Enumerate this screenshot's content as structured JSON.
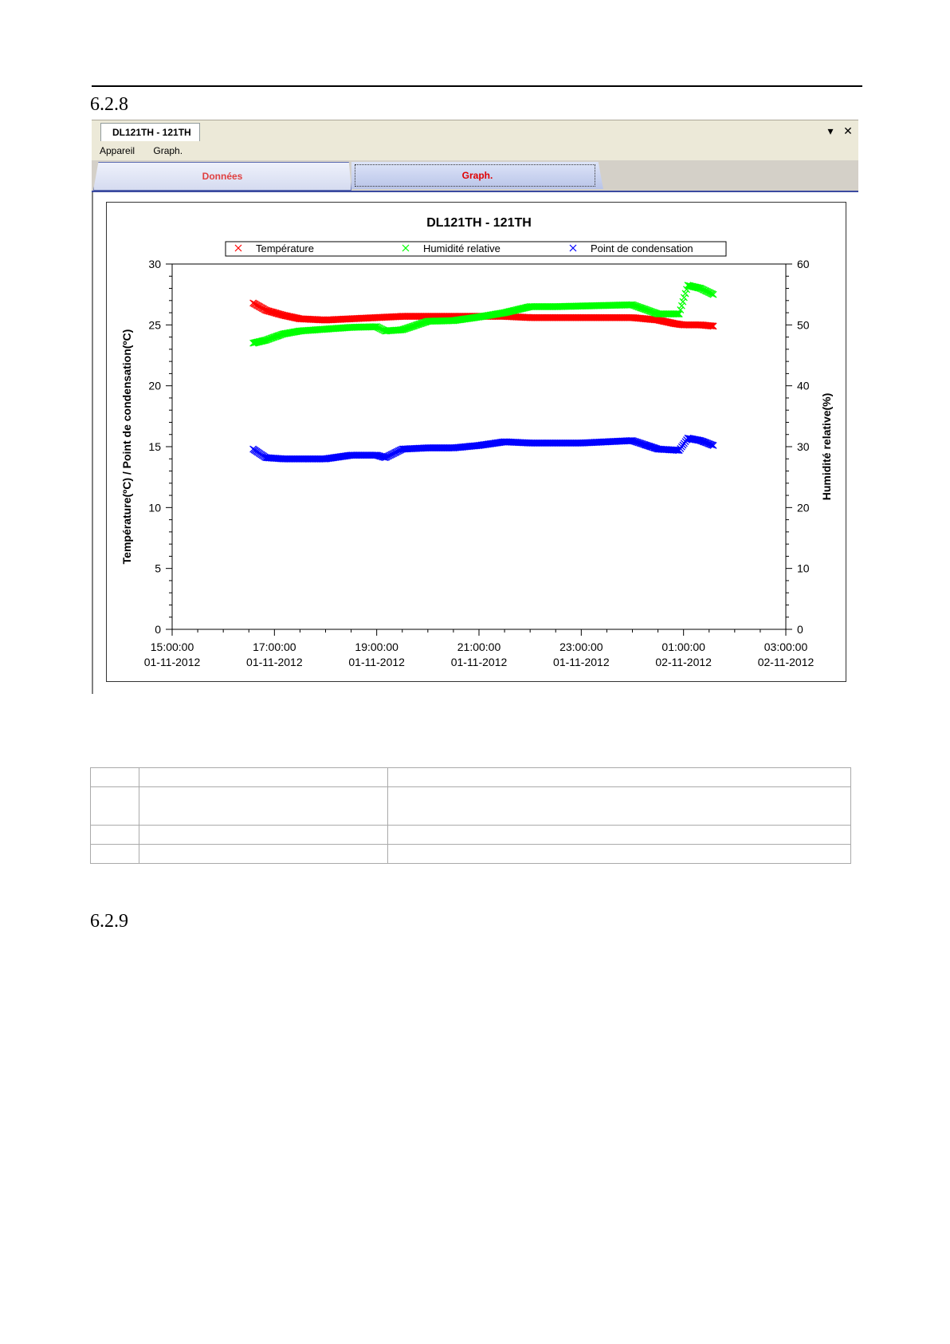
{
  "doc": {
    "section_1": "6.2.8",
    "section_2": "6.2.9"
  },
  "window": {
    "doc_tab": "DL121TH - 121TH",
    "menu": [
      "Appareil",
      "Graph."
    ],
    "controls": [
      "▾",
      "✕"
    ],
    "tabs": [
      "Données",
      "Graph."
    ],
    "active_tab": "Graph."
  },
  "chart_data": {
    "type": "scatter",
    "title": "DL121TH - 121TH",
    "ylabel": "Température(ºC) / Point de condensation(ºC)",
    "y2label": "Humidité relative(%)",
    "ylim": [
      0,
      30
    ],
    "y2lim": [
      0,
      60
    ],
    "yticks": [
      0,
      5,
      10,
      15,
      20,
      25,
      30
    ],
    "y2ticks": [
      0,
      10,
      20,
      30,
      40,
      50,
      60
    ],
    "xlim": [
      "2012-11-01 15:00",
      "2012-11-02 03:00"
    ],
    "xticks": [
      [
        "15:00:00",
        "01-11-2012"
      ],
      [
        "17:00:00",
        "01-11-2012"
      ],
      [
        "19:00:00",
        "01-11-2012"
      ],
      [
        "21:00:00",
        "01-11-2012"
      ],
      [
        "23:00:00",
        "01-11-2012"
      ],
      [
        "01:00:00",
        "02-11-2012"
      ],
      [
        "03:00:00",
        "02-11-2012"
      ]
    ],
    "legend_position": "top",
    "grid": false,
    "marker": "x",
    "series": [
      {
        "name": "Température",
        "color": "#ff0000",
        "axis": "left",
        "x": [
          "2012-11-01 16:35",
          "2012-11-01 16:50",
          "2012-11-01 17:10",
          "2012-11-01 17:30",
          "2012-11-01 18:00",
          "2012-11-01 18:30",
          "2012-11-01 19:00",
          "2012-11-01 19:30",
          "2012-11-01 20:00",
          "2012-11-01 20:30",
          "2012-11-01 21:00",
          "2012-11-01 21:30",
          "2012-11-01 22:00",
          "2012-11-01 22:30",
          "2012-11-01 23:00",
          "2012-11-01 23:30",
          "2012-11-02 00:00",
          "2012-11-02 00:30",
          "2012-11-02 00:50",
          "2012-11-02 01:00",
          "2012-11-02 01:20",
          "2012-11-02 01:35"
        ],
        "y": [
          26.8,
          26.2,
          25.8,
          25.5,
          25.4,
          25.5,
          25.6,
          25.7,
          25.7,
          25.7,
          25.7,
          25.7,
          25.6,
          25.6,
          25.6,
          25.6,
          25.6,
          25.4,
          25.1,
          25.0,
          25.0,
          24.9
        ]
      },
      {
        "name": "Humidité relative",
        "color": "#00ff00",
        "axis": "right",
        "x": [
          "2012-11-01 16:35",
          "2012-11-01 16:50",
          "2012-11-01 17:10",
          "2012-11-01 17:30",
          "2012-11-01 18:00",
          "2012-11-01 18:30",
          "2012-11-01 19:00",
          "2012-11-01 19:10",
          "2012-11-01 19:30",
          "2012-11-01 20:00",
          "2012-11-01 20:30",
          "2012-11-01 21:00",
          "2012-11-01 21:30",
          "2012-11-01 22:00",
          "2012-11-01 22:30",
          "2012-11-01 23:00",
          "2012-11-01 23:30",
          "2012-11-02 00:00",
          "2012-11-02 00:30",
          "2012-11-02 00:55",
          "2012-11-02 01:05",
          "2012-11-02 01:20",
          "2012-11-02 01:35"
        ],
        "y": [
          47.0,
          47.5,
          48.5,
          49.0,
          49.3,
          49.6,
          49.7,
          49.0,
          49.2,
          50.6,
          50.7,
          51.3,
          52.0,
          53.0,
          53.0,
          53.1,
          53.2,
          53.3,
          51.8,
          51.8,
          56.5,
          56.0,
          55.0
        ]
      },
      {
        "name": "Point de condensation",
        "color": "#0000ff",
        "axis": "left",
        "x": [
          "2012-11-01 16:35",
          "2012-11-01 16:50",
          "2012-11-01 17:10",
          "2012-11-01 17:30",
          "2012-11-01 18:00",
          "2012-11-01 18:30",
          "2012-11-01 19:00",
          "2012-11-01 19:10",
          "2012-11-01 19:30",
          "2012-11-01 20:00",
          "2012-11-01 20:30",
          "2012-11-01 21:00",
          "2012-11-01 21:30",
          "2012-11-01 22:00",
          "2012-11-01 22:30",
          "2012-11-01 23:00",
          "2012-11-01 23:30",
          "2012-11-02 00:00",
          "2012-11-02 00:30",
          "2012-11-02 00:55",
          "2012-11-02 01:05",
          "2012-11-02 01:20",
          "2012-11-02 01:35"
        ],
        "y": [
          14.8,
          14.1,
          14.0,
          14.0,
          14.0,
          14.3,
          14.3,
          14.1,
          14.8,
          14.9,
          14.9,
          15.1,
          15.4,
          15.3,
          15.3,
          15.3,
          15.4,
          15.5,
          14.8,
          14.7,
          15.7,
          15.5,
          15.1
        ]
      }
    ]
  },
  "table": {
    "rows": [
      [
        "",
        "",
        ""
      ],
      [
        "",
        "",
        ""
      ],
      [
        "",
        "",
        ""
      ],
      [
        "",
        "",
        ""
      ]
    ]
  }
}
